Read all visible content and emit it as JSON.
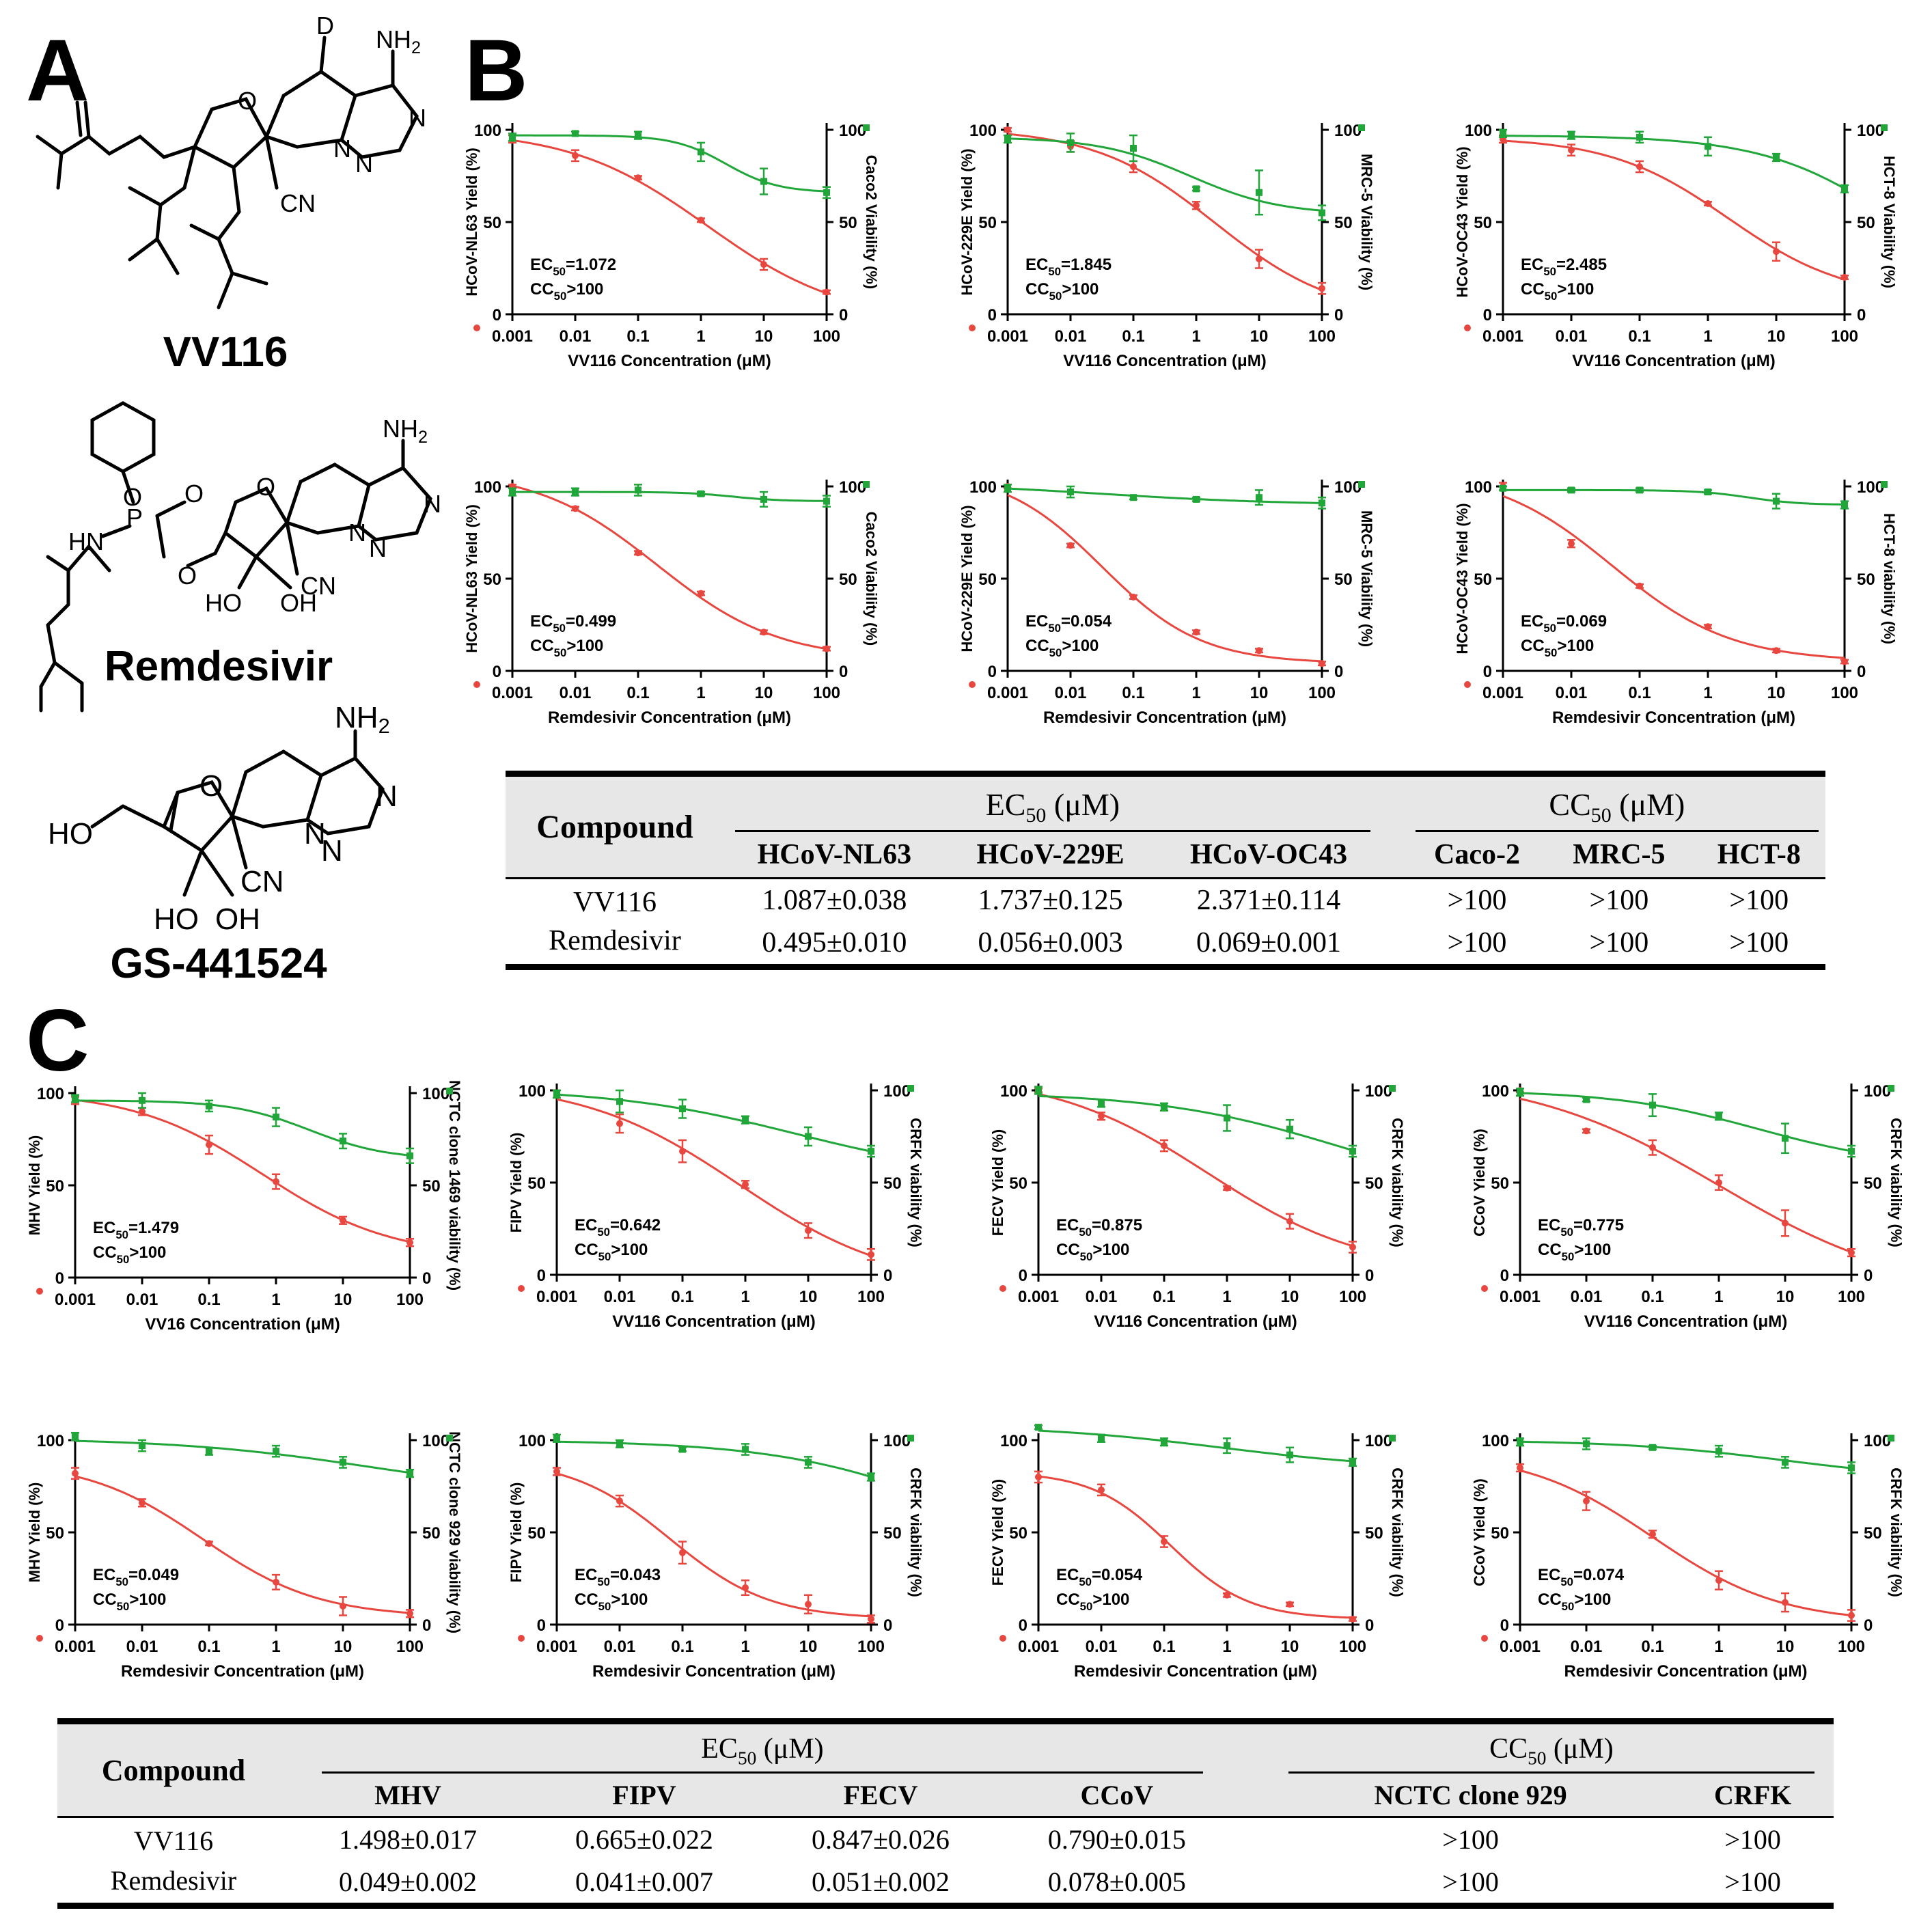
{
  "panel_labels": {
    "a": "A",
    "b": "B",
    "c": "C"
  },
  "molecules": {
    "vv116": {
      "name": "VV116",
      "atoms": {
        "d": "D",
        "nh2": "NH2",
        "cn": "CN",
        "n1": "N",
        "n2": "N",
        "n3": "N",
        "o_ring": "O"
      }
    },
    "remdesivir": {
      "name": "Remdesivir",
      "atoms": {
        "nh2": "NH2",
        "cn": "CN",
        "n1": "N",
        "n2": "N",
        "n3": "N",
        "p": "P",
        "o1": "O",
        "o2": "O",
        "o3": "O",
        "hn": "HN",
        "ho": "HO",
        "oh": "OH",
        "o_ring": "O"
      }
    },
    "gs441524": {
      "name": "GS-441524",
      "atoms": {
        "nh2": "NH2",
        "cn": "CN",
        "n1": "N",
        "n2": "N",
        "n3": "N",
        "ho1": "HO",
        "ho2": "HO",
        "oh": "OH",
        "o_ring": "O"
      }
    }
  },
  "chart_data": [
    {
      "type": "line",
      "panel": "B",
      "title": "",
      "xlabel": "VV116 Concentration (μM)",
      "ylabel": "HCoV-NL63 Yield (%)",
      "y2label": "Caco2 Viability (%)",
      "xscale": "log",
      "xlim": [
        0.001,
        100
      ],
      "ylim": [
        0,
        100
      ],
      "ec_text": "EC50=1.072",
      "cc_text": "CC50>100",
      "yield": [
        95,
        86,
        74,
        51,
        27,
        12
      ],
      "yield_err": [
        2,
        3,
        1,
        1,
        3,
        1
      ],
      "viability": [
        96,
        98,
        97,
        88,
        72,
        66
      ],
      "viability_err": [
        2,
        1,
        2,
        5,
        7,
        3
      ]
    },
    {
      "type": "line",
      "panel": "B",
      "title": "",
      "xlabel": "VV116 Concentration (μM)",
      "ylabel": "HCoV-229E Yield (%)",
      "y2label": "MRC-5 Viability (%)",
      "xscale": "log",
      "xlim": [
        0.001,
        100
      ],
      "ylim": [
        0,
        100
      ],
      "ec_text": "EC50=1.845",
      "cc_text": "CC50>100",
      "yield": [
        100,
        91,
        80,
        59,
        30,
        14
      ],
      "yield_err": [
        1,
        3,
        3,
        2,
        5,
        3
      ],
      "viability": [
        95,
        93,
        90,
        68,
        66,
        55
      ],
      "viability_err": [
        2,
        5,
        7,
        1,
        12,
        4
      ],
      "ec_sub": true
    },
    {
      "type": "line",
      "panel": "B",
      "title": "",
      "xlabel": "VV116 Concentration (μM)",
      "ylabel": "HCoV-OC43 Yield (%)",
      "y2label": "HCT-8 Viability (%)",
      "xscale": "log",
      "xlim": [
        0.001,
        100
      ],
      "ylim": [
        0,
        100
      ],
      "ec_text": "EC50=2.485",
      "cc_text": "CC50>100",
      "yield": [
        95,
        89,
        80,
        60,
        34,
        20
      ],
      "yield_err": [
        2,
        3,
        3,
        1,
        5,
        1
      ],
      "viability": [
        98,
        97,
        96,
        91,
        85,
        68
      ],
      "viability_err": [
        2,
        2,
        3,
        5,
        2,
        2
      ]
    },
    {
      "type": "line",
      "panel": "B",
      "title": "",
      "xlabel": "Remdesivir Concentration (μM)",
      "ylabel": "HCoV-NL63 Yield (%)",
      "y2label": "Caco2 Viability (%)",
      "xscale": "log",
      "xlim": [
        0.001,
        100
      ],
      "ylim": [
        0,
        100
      ],
      "ec_text": "EC50=0.499",
      "cc_text": "CC50>100",
      "yield": [
        100,
        88,
        64,
        42,
        21,
        12
      ],
      "yield_err": [
        1,
        1,
        1,
        1,
        1,
        1
      ],
      "viability": [
        97,
        97,
        98,
        96,
        93,
        92
      ],
      "viability_err": [
        2,
        2,
        3,
        1,
        4,
        3
      ]
    },
    {
      "type": "line",
      "panel": "B",
      "title": "",
      "xlabel": "Remdesivir Concentration (μM)",
      "ylabel": "HCoV-229E Yield (%)",
      "y2label": "MRC-5 Viability (%)",
      "xscale": "log",
      "xlim": [
        0.001,
        100
      ],
      "ylim": [
        0,
        100
      ],
      "ec_text": "EC50=0.054",
      "cc_text": "CC50>100",
      "yield": [
        100,
        68,
        40,
        21,
        11,
        4
      ],
      "yield_err": [
        1,
        1,
        1,
        1,
        1,
        1
      ],
      "viability": [
        99,
        97,
        94,
        93,
        94,
        91
      ],
      "viability_err": [
        2,
        3,
        1,
        1,
        4,
        3
      ]
    },
    {
      "type": "line",
      "panel": "B",
      "title": "",
      "xlabel": "Remdesivir Concentration (μM)",
      "ylabel": "HCoV-OC43 Yield (%)",
      "y2label": "HCT-8 viability (%)",
      "xscale": "log",
      "xlim": [
        0.001,
        100
      ],
      "ylim": [
        0,
        100
      ],
      "ec_text": "EC50=0.069",
      "cc_text": "CC50>100",
      "yield": [
        100,
        69,
        46,
        24,
        11,
        5
      ],
      "yield_err": [
        2,
        2,
        1,
        1,
        1,
        1
      ],
      "viability": [
        99,
        98,
        98,
        97,
        92,
        90
      ],
      "viability_err": [
        1,
        1,
        1,
        1,
        4,
        2
      ]
    },
    {
      "type": "line",
      "panel": "C",
      "title": "",
      "xlabel": "VV16 Concentration (μM)",
      "ylabel": "MHV Yield (%)",
      "y2label": "NCTC clone 1469 viability (%)",
      "xscale": "log",
      "xlim": [
        0.001,
        100
      ],
      "ylim": [
        0,
        100
      ],
      "ec_text": "EC50=1.479",
      "cc_text": "CC50>100",
      "yield": [
        96,
        90,
        72,
        52,
        31,
        19
      ],
      "yield_err": [
        2,
        2,
        5,
        4,
        2,
        2
      ],
      "viability": [
        97,
        96,
        93,
        87,
        74,
        66
      ],
      "viability_err": [
        2,
        4,
        3,
        5,
        4,
        4
      ]
    },
    {
      "type": "line",
      "panel": "C",
      "title": "",
      "xlabel": "VV116 Concentration (μM)",
      "ylabel": "FIPV Yield (%)",
      "y2label": "CRFK viability (%)",
      "xscale": "log",
      "xlim": [
        0.001,
        100
      ],
      "ylim": [
        0,
        100
      ],
      "ec_text": "EC50=0.642",
      "cc_text": "CC50>100",
      "yield": [
        98,
        82,
        67,
        49,
        24,
        11
      ],
      "yield_err": [
        2,
        5,
        6,
        2,
        4,
        3
      ],
      "viability": [
        98,
        94,
        90,
        84,
        75,
        67
      ],
      "viability_err": [
        2,
        6,
        5,
        2,
        5,
        3
      ]
    },
    {
      "type": "line",
      "panel": "C",
      "title": "",
      "xlabel": "VV116 Concentration (μM)",
      "ylabel": "FECV Yield (%)",
      "y2label": "CRFK viability (%)",
      "xscale": "log",
      "xlim": [
        0.001,
        100
      ],
      "ylim": [
        0,
        100
      ],
      "ec_text": "EC50=0.875",
      "cc_text": "CC50>100",
      "yield": [
        100,
        86,
        70,
        47,
        29,
        15
      ],
      "yield_err": [
        1,
        2,
        3,
        1,
        4,
        3
      ],
      "viability": [
        100,
        93,
        91,
        85,
        79,
        67
      ],
      "viability_err": [
        2,
        2,
        2,
        7,
        5,
        3
      ]
    },
    {
      "type": "line",
      "panel": "C",
      "title": "",
      "xlabel": "VV116 Concentration (μM)",
      "ylabel": "CCoV Yield (%)",
      "y2label": "CRFK viability (%)",
      "xscale": "log",
      "xlim": [
        0.001,
        100
      ],
      "ylim": [
        0,
        100
      ],
      "ec_text": "EC50=0.775",
      "cc_text": "CC50>100",
      "yield": [
        100,
        78,
        69,
        50,
        28,
        12
      ],
      "yield_err": [
        1,
        1,
        4,
        4,
        7,
        2
      ],
      "viability": [
        99,
        95,
        92,
        86,
        74,
        67
      ],
      "viability_err": [
        2,
        1,
        6,
        2,
        8,
        3
      ]
    },
    {
      "type": "line",
      "panel": "C",
      "title": "",
      "xlabel": "Remdesivir Concentration (μM)",
      "ylabel": "MHV Yield (%)",
      "y2label": "NCTC clone 929 viability (%)",
      "xscale": "log",
      "xlim": [
        0.001,
        100
      ],
      "ylim": [
        0,
        100
      ],
      "ec_text": "EC50=0.049",
      "cc_text": "CC50>100",
      "yield": [
        82,
        66,
        44,
        23,
        10,
        6
      ],
      "yield_err": [
        3,
        2,
        1,
        4,
        5,
        2
      ],
      "viability": [
        102,
        97,
        94,
        94,
        88,
        82
      ],
      "viability_err": [
        2,
        3,
        2,
        3,
        3,
        2
      ]
    },
    {
      "type": "line",
      "panel": "C",
      "title": "",
      "xlabel": "Remdesivir Concentration (μM)",
      "ylabel": "FIPV Yield (%)",
      "y2label": "CRFK viability (%)",
      "xscale": "log",
      "xlim": [
        0.001,
        100
      ],
      "ylim": [
        0,
        100
      ],
      "ec_text": "EC50=0.043",
      "cc_text": "CC50>100",
      "yield": [
        83,
        67,
        39,
        20,
        11,
        3
      ],
      "yield_err": [
        2,
        3,
        6,
        4,
        5,
        2
      ],
      "viability": [
        101,
        98,
        95,
        95,
        88,
        80
      ],
      "viability_err": [
        2,
        2,
        1,
        3,
        3,
        2
      ]
    },
    {
      "type": "line",
      "panel": "C",
      "title": "",
      "xlabel": "Remdesivir Concentration (μM)",
      "ylabel": "FECV Yield (%)",
      "y2label": "CRFK viability (%)",
      "xscale": "log",
      "xlim": [
        0.001,
        100
      ],
      "ylim": [
        0,
        100
      ],
      "ec_text": "EC50=0.054",
      "cc_text": "CC50>100",
      "yield": [
        80,
        73,
        45,
        16,
        11,
        3
      ],
      "yield_err": [
        3,
        3,
        3,
        1,
        1,
        1
      ],
      "viability": [
        107,
        101,
        99,
        97,
        92,
        88
      ],
      "viability_err": [
        1,
        2,
        2,
        4,
        4,
        2
      ]
    },
    {
      "type": "line",
      "panel": "C",
      "title": "",
      "xlabel": "Remdesivir Concentration (μM)",
      "ylabel": "CCoV Yield (%)",
      "y2label": "CRFK viability (%)",
      "xscale": "log",
      "xlim": [
        0.001,
        100
      ],
      "ylim": [
        0,
        100
      ],
      "ec_text": "EC50=0.074",
      "cc_text": "CC50>100",
      "yield": [
        85,
        67,
        49,
        24,
        12,
        5
      ],
      "yield_err": [
        2,
        5,
        2,
        5,
        5,
        3
      ],
      "viability": [
        99,
        98,
        96,
        94,
        88,
        85
      ],
      "viability_err": [
        2,
        3,
        1,
        3,
        3,
        3
      ]
    }
  ],
  "axis": {
    "x_ticks": [
      "0.001",
      "0.01",
      "0.1",
      "1",
      "10",
      "100"
    ],
    "y_ticks": [
      "0",
      "50",
      "100"
    ],
    "y2_ticks": [
      "0",
      "50",
      "100"
    ]
  },
  "colors": {
    "yield": "#e8473f",
    "viability": "#21a63a",
    "yield_light": "#f08a83",
    "viability_light": "#37c24e"
  },
  "table_b": {
    "compound_header": "Compound",
    "ec_group": "EC50 (μM)",
    "cc_group": "CC50 (μM)",
    "ec_cols": [
      "HCoV-NL63",
      "HCoV-229E",
      "HCoV-OC43"
    ],
    "cc_cols": [
      "Caco-2",
      "MRC-5",
      "HCT-8"
    ],
    "rows": [
      {
        "compound": "VV116",
        "values": [
          "1.087±0.038",
          "1.737±0.125",
          "2.371±0.114",
          ">100",
          ">100",
          ">100"
        ]
      },
      {
        "compound": "Remdesivir",
        "values": [
          "0.495±0.010",
          "0.056±0.003",
          "0.069±0.001",
          ">100",
          ">100",
          ">100"
        ]
      }
    ]
  },
  "table_c": {
    "compound_header": "Compound",
    "ec_group": "EC50 (μM)",
    "cc_group": "CC50 (μM)",
    "ec_cols": [
      "MHV",
      "FIPV",
      "FECV",
      "CCoV"
    ],
    "cc_cols": [
      "NCTC clone 929",
      "CRFK"
    ],
    "rows": [
      {
        "compound": "VV116",
        "values": [
          "1.498±0.017",
          "0.665±0.022",
          "0.847±0.026",
          "0.790±0.015",
          ">100",
          ">100"
        ]
      },
      {
        "compound": "Remdesivir",
        "values": [
          "0.049±0.002",
          "0.041±0.007",
          "0.051±0.002",
          "0.078±0.005",
          ">100",
          ">100"
        ]
      }
    ]
  }
}
